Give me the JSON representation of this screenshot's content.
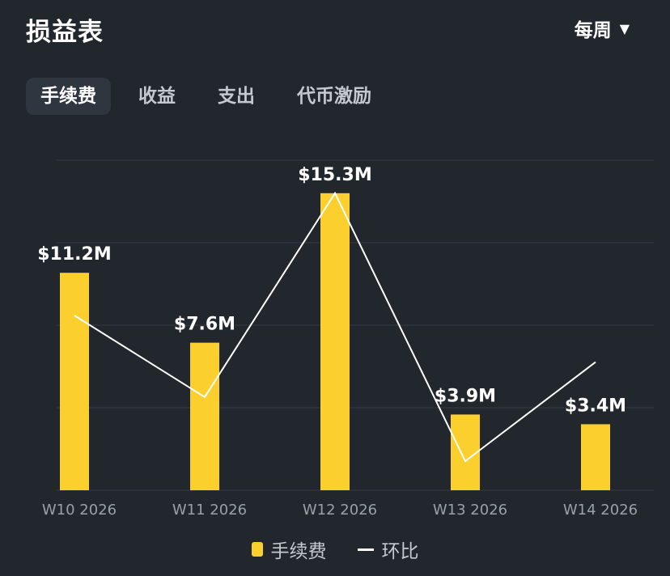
{
  "header": {
    "title": "损益表",
    "period_label": "每周"
  },
  "tabs": [
    {
      "label": "手续费",
      "active": true
    },
    {
      "label": "收益",
      "active": false
    },
    {
      "label": "支出",
      "active": false
    },
    {
      "label": "代币激励",
      "active": false
    }
  ],
  "colors": {
    "bar": "#fbcf2e",
    "line": "#ffffff",
    "grid": "#353b44",
    "axis_text": "#9aa0a8"
  },
  "chart_data": {
    "type": "bar",
    "categories": [
      "W10 2026",
      "W11 2026",
      "W12 2026",
      "W13 2026",
      "W14 2026"
    ],
    "series": [
      {
        "name": "手续费",
        "type": "bar",
        "values": [
          11.2,
          7.6,
          15.3,
          3.9,
          3.4
        ],
        "labels": [
          "$11.2M",
          "$7.6M",
          "$15.3M",
          "$3.9M",
          "$3.4M"
        ]
      },
      {
        "name": "环比",
        "type": "line",
        "values": [
          9.0,
          4.8,
          15.3,
          1.5,
          6.6
        ]
      }
    ],
    "ylim": [
      0,
      17
    ],
    "grid": true,
    "legend": "bottom-center"
  }
}
